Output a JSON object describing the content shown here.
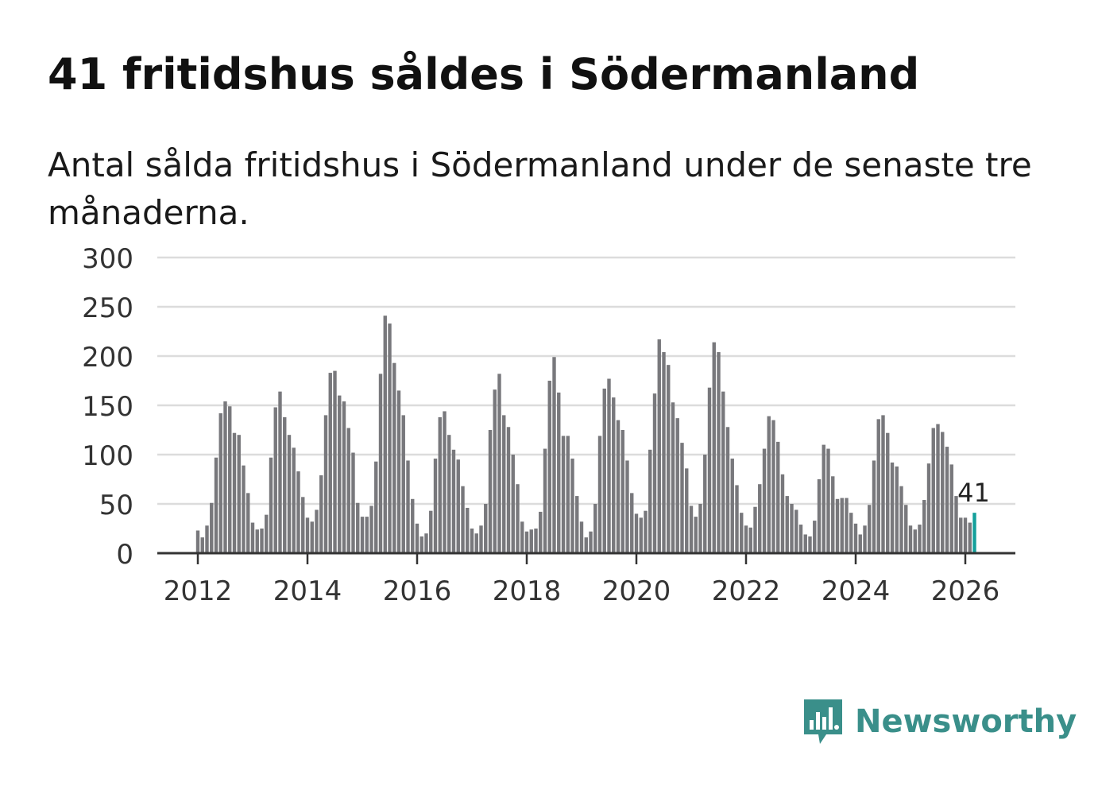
{
  "title": "41 fritidshus såldes i Södermanland",
  "subtitle": "Antal sålda fritidshus i Södermanland under de senaste tre månaderna.",
  "brand": "Newsworthy",
  "colors": {
    "bar": "#78787c",
    "highlight": "#14a09b",
    "grid": "#dcdcdc",
    "axis": "#333333",
    "brand": "#3a8f8a"
  },
  "chart_data": {
    "type": "bar",
    "start": "2012-01",
    "frequency": "monthly",
    "ylim": [
      0,
      300
    ],
    "yticks": [
      0,
      50,
      100,
      150,
      200,
      250,
      300
    ],
    "xtick_labels": [
      "2012",
      "2014",
      "2016",
      "2018",
      "2020",
      "2022",
      "2024",
      "2026"
    ],
    "highlight_label": "41",
    "values": [
      23,
      16,
      28,
      51,
      97,
      142,
      154,
      149,
      122,
      120,
      89,
      61,
      31,
      24,
      25,
      39,
      97,
      148,
      164,
      138,
      120,
      107,
      83,
      57,
      36,
      32,
      44,
      79,
      140,
      183,
      185,
      160,
      154,
      127,
      102,
      51,
      37,
      37,
      48,
      93,
      182,
      241,
      233,
      193,
      165,
      140,
      94,
      55,
      30,
      17,
      20,
      43,
      96,
      138,
      144,
      120,
      105,
      95,
      68,
      46,
      25,
      20,
      28,
      50,
      125,
      166,
      182,
      140,
      128,
      100,
      70,
      32,
      22,
      24,
      25,
      42,
      106,
      175,
      199,
      163,
      119,
      119,
      96,
      58,
      32,
      16,
      22,
      50,
      119,
      167,
      177,
      158,
      135,
      125,
      94,
      61,
      40,
      36,
      43,
      105,
      162,
      217,
      204,
      191,
      153,
      137,
      112,
      86,
      48,
      37,
      50,
      100,
      168,
      214,
      204,
      164,
      128,
      96,
      69,
      41,
      28,
      26,
      47,
      70,
      106,
      139,
      135,
      113,
      80,
      58,
      50,
      44,
      29,
      19,
      17,
      33,
      75,
      110,
      106,
      78,
      55,
      56,
      56,
      41,
      30,
      19,
      28,
      49,
      94,
      136,
      140,
      122,
      92,
      88,
      68,
      49,
      28,
      24,
      29,
      54,
      91,
      127,
      131,
      123,
      108,
      90,
      58,
      36,
      36,
      31,
      41
    ]
  }
}
